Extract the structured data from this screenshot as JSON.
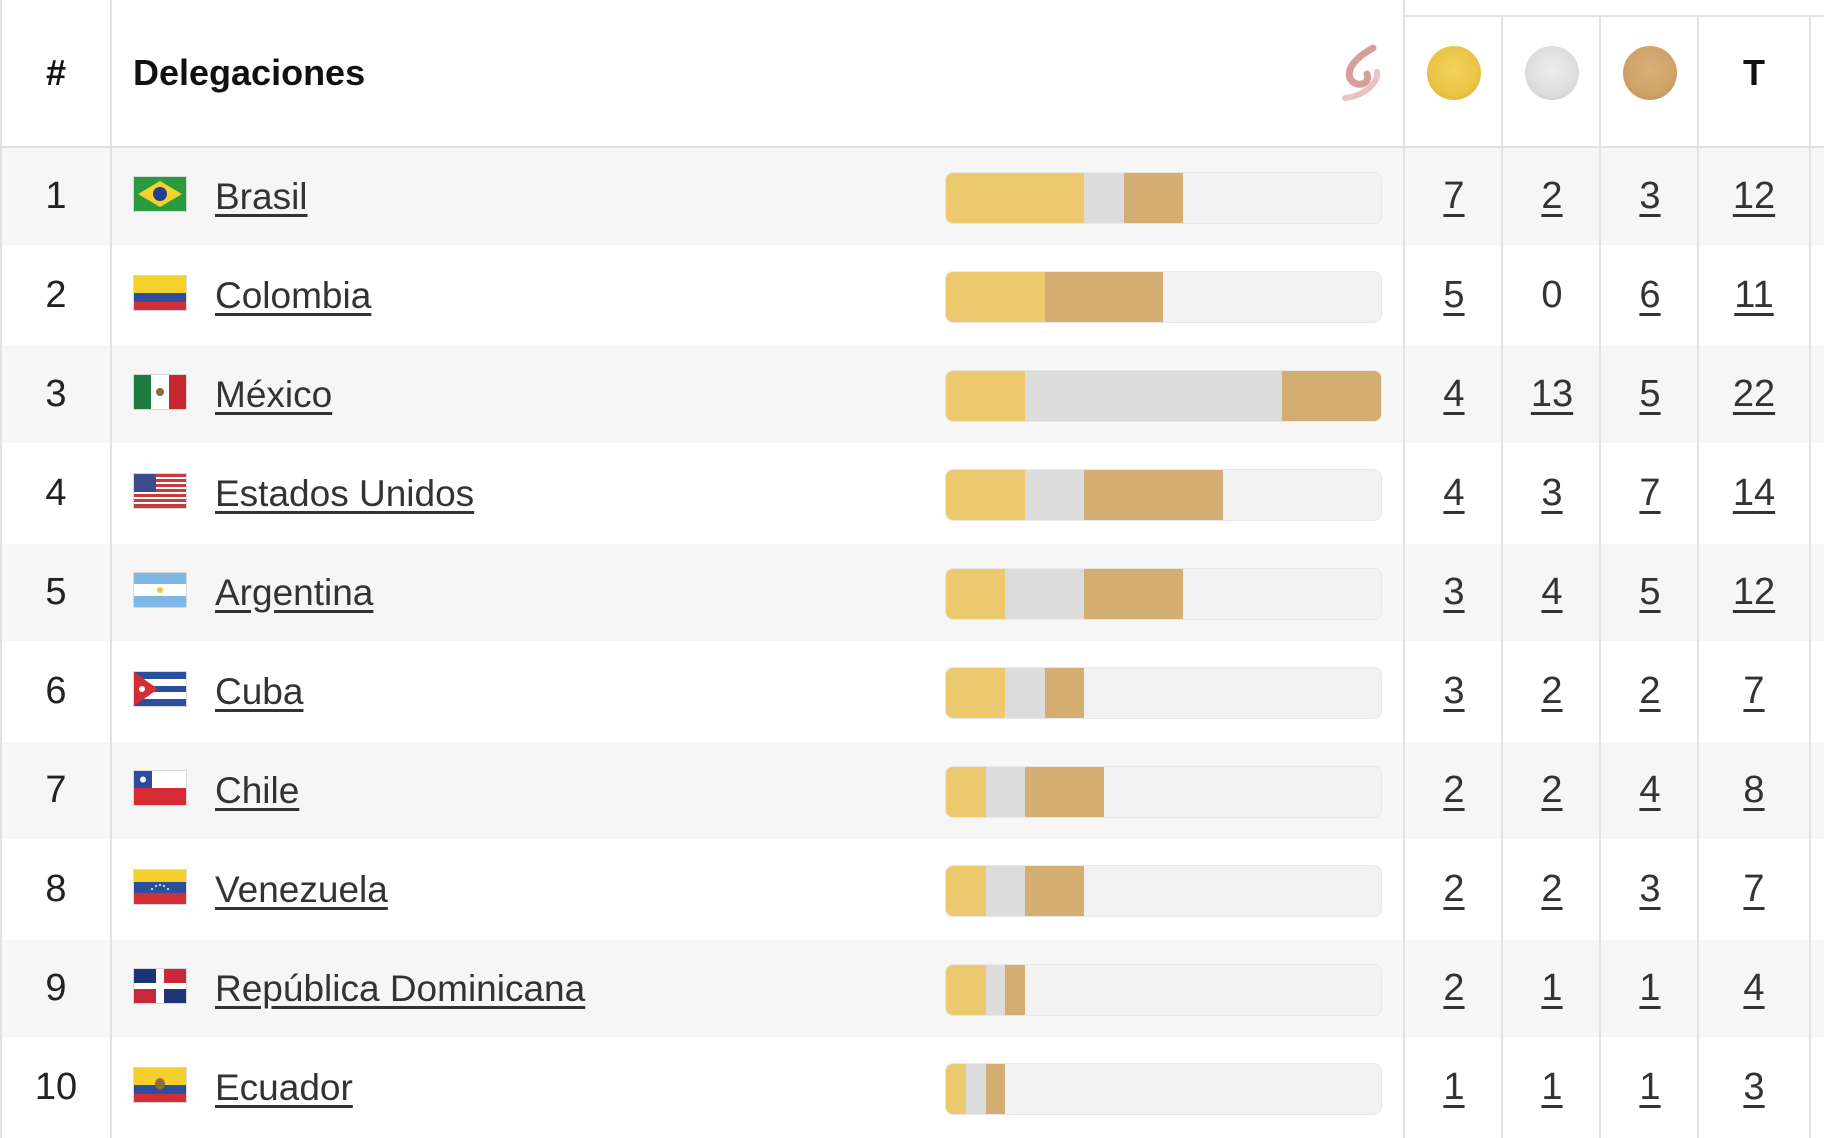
{
  "header": {
    "rank_label": "#",
    "delegations_label": "Delegaciones",
    "total_label": "T",
    "logo_icon": "sport-logo-icon",
    "medal_icons": [
      "gold-medal-icon",
      "silver-medal-icon",
      "bronze-medal-icon"
    ]
  },
  "colors": {
    "gold": "#ecc96e",
    "silver": "#dcdcdc",
    "bronze": "#d3ad72",
    "track": "#f2f2f2"
  },
  "bar_scale_max": 22,
  "rows": [
    {
      "rank": "1",
      "country": "Brasil",
      "flag": "brazil-flag-icon",
      "gold": "7",
      "silver": "2",
      "bronze": "3",
      "total": "12"
    },
    {
      "rank": "2",
      "country": "Colombia",
      "flag": "colombia-flag-icon",
      "gold": "5",
      "silver": "0",
      "bronze": "6",
      "total": "11"
    },
    {
      "rank": "3",
      "country": "México",
      "flag": "mexico-flag-icon",
      "gold": "4",
      "silver": "13",
      "bronze": "5",
      "total": "22"
    },
    {
      "rank": "4",
      "country": "Estados Unidos",
      "flag": "usa-flag-icon",
      "gold": "4",
      "silver": "3",
      "bronze": "7",
      "total": "14"
    },
    {
      "rank": "5",
      "country": "Argentina",
      "flag": "argentina-flag-icon",
      "gold": "3",
      "silver": "4",
      "bronze": "5",
      "total": "12"
    },
    {
      "rank": "6",
      "country": "Cuba",
      "flag": "cuba-flag-icon",
      "gold": "3",
      "silver": "2",
      "bronze": "2",
      "total": "7"
    },
    {
      "rank": "7",
      "country": "Chile",
      "flag": "chile-flag-icon",
      "gold": "2",
      "silver": "2",
      "bronze": "4",
      "total": "8"
    },
    {
      "rank": "8",
      "country": "Venezuela",
      "flag": "venezuela-flag-icon",
      "gold": "2",
      "silver": "2",
      "bronze": "3",
      "total": "7"
    },
    {
      "rank": "9",
      "country": "República Dominicana",
      "flag": "dominican-republic-flag-icon",
      "gold": "2",
      "silver": "1",
      "bronze": "1",
      "total": "4"
    },
    {
      "rank": "10",
      "country": "Ecuador",
      "flag": "ecuador-flag-icon",
      "gold": "1",
      "silver": "1",
      "bronze": "1",
      "total": "3"
    }
  ]
}
